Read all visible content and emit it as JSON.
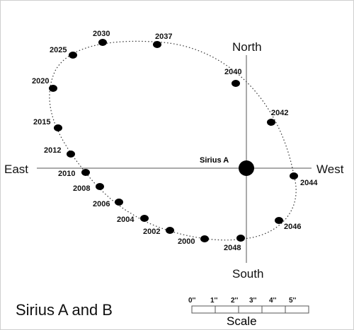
{
  "title": "Sirius A and B",
  "primary_label": "Sirius A",
  "directions": {
    "north": "North",
    "south": "South",
    "east": "East",
    "west": "West"
  },
  "scale": {
    "label": "Scale",
    "ticks": [
      "0''",
      "1''",
      "2''",
      "3''",
      "4''",
      "5''"
    ]
  },
  "orbit_points": [
    {
      "year": "2000"
    },
    {
      "year": "2002"
    },
    {
      "year": "2004"
    },
    {
      "year": "2006"
    },
    {
      "year": "2008"
    },
    {
      "year": "2010"
    },
    {
      "year": "2012"
    },
    {
      "year": "2015"
    },
    {
      "year": "2020"
    },
    {
      "year": "2025"
    },
    {
      "year": "2030"
    },
    {
      "year": "2037"
    },
    {
      "year": "2040"
    },
    {
      "year": "2042"
    },
    {
      "year": "2044"
    },
    {
      "year": "2046"
    },
    {
      "year": "2048"
    }
  ]
}
